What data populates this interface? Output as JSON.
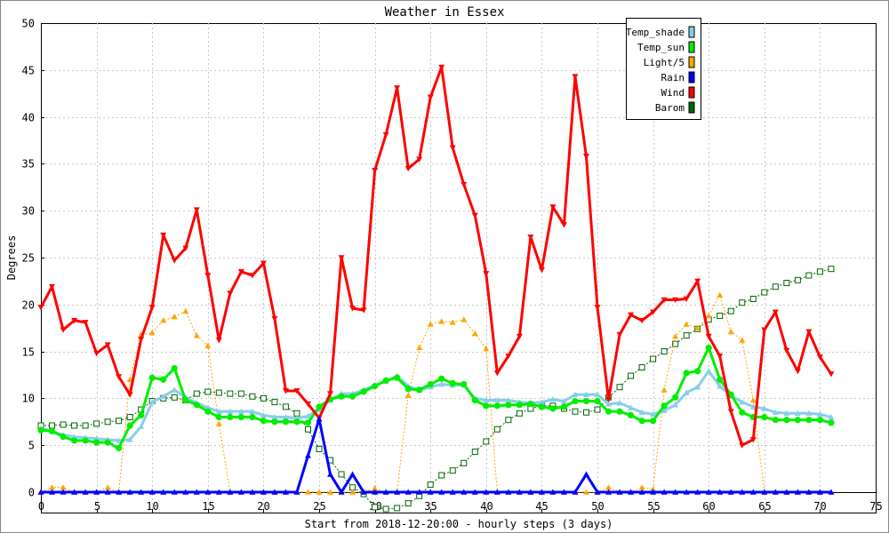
{
  "chart_data": {
    "type": "line",
    "title": "Weather in Essex",
    "xlabel": "Start from 2018-12-20:00 - hourly steps (3 days)",
    "ylabel": "Degrees",
    "xlim": [
      0,
      75
    ],
    "ylim": [
      -2,
      50
    ],
    "x_ticks": [
      0,
      5,
      10,
      15,
      20,
      25,
      30,
      35,
      40,
      45,
      50,
      55,
      60,
      65,
      70,
      75
    ],
    "y_ticks": [
      0,
      5,
      10,
      15,
      20,
      25,
      30,
      35,
      40,
      45,
      50
    ],
    "grid": true,
    "legend_position": "top-right",
    "series": [
      {
        "name": "Temp_shade",
        "color": "#87ceeb",
        "line_width": 3,
        "dashed": false,
        "marker": "triangle-up",
        "values": [
          6.8,
          6.5,
          6.1,
          5.9,
          5.8,
          5.7,
          5.6,
          5.5,
          5.6,
          7.0,
          9.6,
          10.2,
          10.9,
          10.1,
          9.5,
          9.0,
          8.6,
          8.6,
          8.6,
          8.6,
          8.2,
          8.0,
          8.0,
          7.9,
          8.1,
          8.8,
          9.8,
          10.5,
          10.5,
          10.9,
          11.4,
          11.8,
          12.4,
          11.3,
          10.9,
          11.2,
          11.5,
          11.4,
          11.4,
          10.0,
          9.8,
          9.8,
          9.8,
          9.6,
          9.5,
          9.6,
          9.9,
          9.7,
          10.4,
          10.4,
          10.4,
          9.4,
          9.5,
          9.0,
          8.5,
          8.3,
          8.7,
          9.3,
          10.6,
          11.2,
          12.9,
          11.3,
          10.3,
          9.6,
          9.1,
          8.9,
          8.5,
          8.4,
          8.4,
          8.4,
          8.3,
          8.0
        ]
      },
      {
        "name": "Temp_sun",
        "color": "#00ee00",
        "line_width": 3,
        "dashed": false,
        "marker": "circle",
        "values": [
          6.6,
          6.5,
          5.9,
          5.5,
          5.5,
          5.3,
          5.3,
          4.7,
          7.1,
          8.2,
          12.2,
          12.0,
          13.2,
          9.8,
          9.3,
          8.6,
          8.0,
          8.0,
          8.0,
          8.0,
          7.6,
          7.5,
          7.5,
          7.5,
          7.4,
          9.1,
          9.9,
          10.2,
          10.2,
          10.7,
          11.3,
          11.9,
          12.2,
          11.0,
          10.9,
          11.5,
          12.1,
          11.6,
          11.5,
          9.8,
          9.2,
          9.2,
          9.3,
          9.3,
          9.4,
          9.1,
          8.9,
          9.1,
          9.7,
          9.7,
          9.7,
          8.6,
          8.6,
          8.2,
          7.6,
          7.6,
          9.2,
          10.1,
          12.7,
          12.9,
          15.4,
          12.0,
          10.4,
          8.5,
          8.0,
          8.0,
          7.7,
          7.7,
          7.7,
          7.7,
          7.7,
          7.4
        ]
      },
      {
        "name": "Light/5",
        "color": "#ffa500",
        "line_width": 1,
        "dashed": true,
        "marker": "triangle-up",
        "values": [
          0,
          0.5,
          0.5,
          0,
          0,
          0,
          0.5,
          0,
          12.0,
          16.8,
          17.0,
          18.3,
          18.7,
          19.3,
          16.7,
          15.6,
          7.3,
          0,
          0,
          0,
          0,
          0,
          0,
          0,
          0,
          0,
          0,
          0,
          0,
          0,
          0.4,
          0,
          0,
          10.3,
          15.4,
          17.9,
          18.2,
          18.1,
          18.4,
          16.9,
          15.3,
          0,
          0,
          0,
          0,
          0,
          0,
          0,
          0,
          0,
          0,
          0.5,
          0,
          0,
          0.5,
          0.3,
          10.9,
          16.6,
          17.9,
          17.5,
          18.8,
          21.0,
          17.1,
          16.2,
          9.8,
          0,
          0,
          0,
          0,
          0,
          0,
          0
        ]
      },
      {
        "name": "Rain",
        "color": "#0000ff",
        "line_width": 3,
        "dashed": false,
        "marker": "triangle-up",
        "values": [
          0,
          0,
          0,
          0,
          0,
          0,
          0,
          0,
          0,
          0,
          0,
          0,
          0,
          0,
          0,
          0,
          0,
          0,
          0,
          0,
          0,
          0,
          0,
          0,
          3.9,
          7.8,
          1.9,
          0,
          1.9,
          0,
          0,
          0,
          0,
          0,
          0,
          0,
          0,
          0,
          0,
          0,
          0,
          0,
          0,
          0,
          0,
          0,
          0,
          0,
          0,
          1.9,
          0,
          0,
          0,
          0,
          0,
          0,
          0,
          0,
          0,
          0,
          0,
          0,
          0,
          0,
          0,
          0,
          0,
          0,
          0,
          0,
          0,
          0
        ]
      },
      {
        "name": "Wind",
        "color": "#ff0000",
        "line_width": 3,
        "dashed": false,
        "marker": "triangle-down",
        "values": [
          19.7,
          21.9,
          17.3,
          18.3,
          18.1,
          14.8,
          15.7,
          12.3,
          10.4,
          16.3,
          19.7,
          27.4,
          24.7,
          26.0,
          30.1,
          23.1,
          16.2,
          21.2,
          23.5,
          23.1,
          24.4,
          18.5,
          10.8,
          10.8,
          9.4,
          7.9,
          10.5,
          25.0,
          19.6,
          19.4,
          34.3,
          38.1,
          43.1,
          34.5,
          35.5,
          42.1,
          45.3,
          36.7,
          32.8,
          29.5,
          23.3,
          12.7,
          14.5,
          16.6,
          27.2,
          23.7,
          30.4,
          28.5,
          44.3,
          35.8,
          19.7,
          9.9,
          16.8,
          18.9,
          18.3,
          19.2,
          20.5,
          20.5,
          20.6,
          22.5,
          16.6,
          14.5,
          8.6,
          5.0,
          5.6,
          17.3,
          19.2,
          15.1,
          12.9,
          17.1,
          14.4,
          12.6
        ]
      },
      {
        "name": "Barom",
        "color": "#006400",
        "line_width": 1,
        "dashed": true,
        "marker": "square-open",
        "values": [
          7.1,
          7.1,
          7.2,
          7.1,
          7.1,
          7.3,
          7.5,
          7.6,
          8.0,
          8.8,
          9.7,
          10.0,
          10.1,
          9.8,
          10.5,
          10.7,
          10.6,
          10.5,
          10.5,
          10.2,
          10.0,
          9.6,
          9.1,
          8.4,
          6.7,
          4.6,
          3.4,
          1.9,
          0.5,
          -0.2,
          -1.6,
          -1.8,
          -1.7,
          -1.2,
          -0.4,
          0.8,
          1.8,
          2.3,
          3.1,
          4.3,
          5.4,
          6.7,
          7.7,
          8.4,
          8.9,
          9.2,
          9.2,
          8.9,
          8.6,
          8.5,
          8.8,
          10.1,
          11.2,
          12.4,
          13.3,
          14.2,
          15.0,
          15.8,
          16.7,
          17.4,
          18.4,
          18.8,
          19.3,
          20.2,
          20.6,
          21.3,
          21.9,
          22.3,
          22.6,
          23.1,
          23.5,
          23.8
        ]
      }
    ]
  }
}
